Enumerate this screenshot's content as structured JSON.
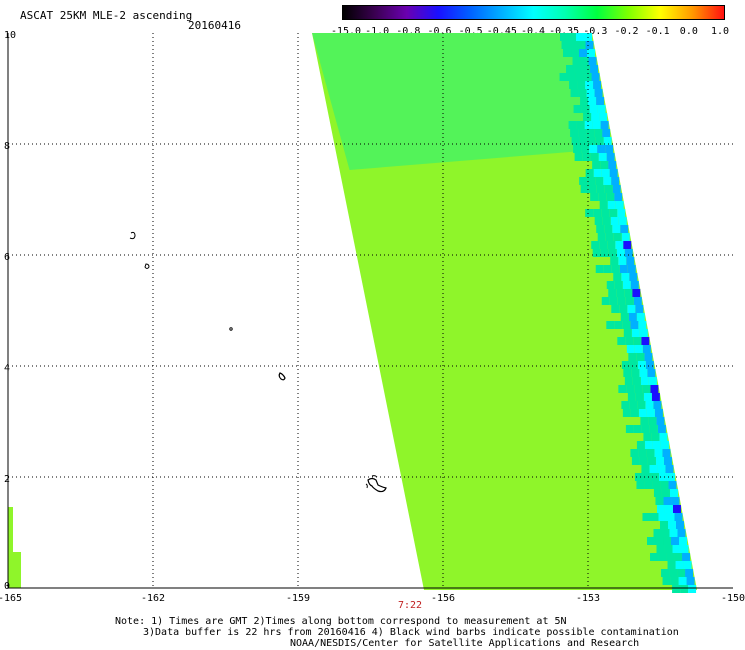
{
  "header": {
    "title": "ASCAT 25KM MLE-2 ascending",
    "date": "20160416"
  },
  "colorbar": {
    "labels": [
      "-15.0",
      "-1.0",
      "-0.8",
      "-0.6",
      "-0.5",
      "-0.45",
      "-0.4",
      "-0.35",
      "-0.3",
      "-0.2",
      "-0.1",
      "0.0",
      "1.0"
    ],
    "colors": [
      "#000000",
      "#3a0050",
      "#6a00b0",
      "#1a10ff",
      "#0060ff",
      "#00b0ff",
      "#00ffff",
      "#00ffb0",
      "#00ff40",
      "#80ff00",
      "#ffff00",
      "#ff9900",
      "#ff1010"
    ]
  },
  "map": {
    "lat_labels": [
      "10",
      "8",
      "6",
      "4",
      "2",
      "0"
    ],
    "lon_labels": [
      "-165",
      "-162",
      "-159",
      "-156",
      "-153",
      "-150"
    ],
    "time_label": "7:22",
    "swath_color": "#8ff52a",
    "swath_edge_colors": [
      "#00e8a0",
      "#00ffff",
      "#00b0ff",
      "#1a10ff",
      "#3a0050"
    ]
  },
  "notes": {
    "line1": "Note: 1) Times are GMT 2)Times along bottom correspond to measurement at 5N",
    "line2": "3)Data buffer is 22 hrs from 20160416 4) Black wind barbs indicate possible contamination",
    "line3": "NOAA/NESDIS/Center for Satellite Applications and Research"
  }
}
